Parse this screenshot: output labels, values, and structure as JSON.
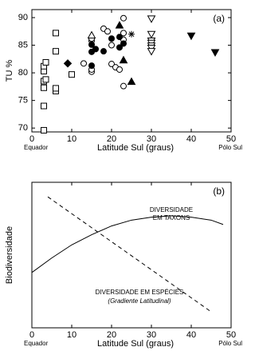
{
  "chart_data": [
    {
      "type": "scatter",
      "panel_label": "(a)",
      "xlabel": "Latitude Sul (graus)",
      "ylabel": "TU %",
      "annotations": [
        "Equador",
        "Pólo Sul"
      ],
      "xlim": [
        0,
        50
      ],
      "xticks": [
        0,
        10,
        20,
        30,
        40,
        50
      ],
      "ylim": [
        69.3,
        91.45
      ],
      "yticks": [
        70,
        75,
        80,
        85,
        90
      ],
      "series": [
        {
          "marker": "square",
          "filled": false,
          "color": "#000000",
          "x": [
            3,
            3,
            3,
            3,
            3.5,
            3,
            3,
            3.5,
            6,
            6,
            6,
            6,
            10
          ],
          "y": [
            69.6,
            74,
            77.3,
            78.5,
            78.8,
            80.3,
            81.2,
            81.9,
            76.7,
            77.2,
            83.9,
            87.2,
            79.7
          ]
        },
        {
          "marker": "diamond",
          "filled": true,
          "color": "#000000",
          "x": [
            9
          ],
          "y": [
            81.7
          ]
        },
        {
          "marker": "circle",
          "filled": false,
          "color": "#000000",
          "x": [
            13,
            15,
            15,
            15,
            15,
            18,
            19,
            20,
            20,
            21,
            22,
            23,
            23,
            23,
            23
          ],
          "y": [
            81.7,
            80.2,
            80.6,
            85.8,
            86.2,
            88,
            87.5,
            85,
            81.6,
            81,
            80.6,
            77.6,
            86,
            87.2,
            89.9
          ]
        },
        {
          "marker": "circle",
          "filled": true,
          "color": "#000000",
          "x": [
            15,
            15,
            15,
            16,
            18,
            20,
            22,
            22,
            23
          ],
          "y": [
            83.8,
            85.1,
            81.3,
            84.3,
            83.9,
            86.2,
            84.6,
            86.5,
            85.3
          ]
        },
        {
          "marker": "triangle-up",
          "filled": false,
          "color": "#000000",
          "x": [
            15
          ],
          "y": [
            86.8
          ]
        },
        {
          "marker": "triangle-up",
          "filled": true,
          "color": "#000000",
          "x": [
            22,
            23,
            25
          ],
          "y": [
            88.6,
            82.3,
            78.4
          ]
        },
        {
          "marker": "asterisk",
          "filled": false,
          "color": "#000000",
          "x": [
            25
          ],
          "y": [
            87
          ]
        },
        {
          "marker": "triangle-down",
          "filled": false,
          "color": "#000000",
          "x": [
            30,
            30,
            30,
            30,
            30,
            30,
            30
          ],
          "y": [
            89.8,
            87,
            85.8,
            85.4,
            84.9,
            84.5,
            83.9
          ]
        },
        {
          "marker": "triangle-down",
          "filled": true,
          "color": "#000000",
          "x": [
            40,
            46
          ],
          "y": [
            86.7,
            83.7
          ]
        }
      ]
    },
    {
      "type": "line",
      "panel_label": "(b)",
      "xlabel": "Latitude Sul (graus)",
      "ylabel": "Biodiversidade",
      "annotations": [
        "Equador",
        "Pólo Sul"
      ],
      "xlim": [
        0,
        50
      ],
      "xticks": [
        0,
        10,
        20,
        30,
        40,
        50
      ],
      "ylim": [
        0,
        100
      ],
      "series": [
        {
          "label": [
            "DIVERSIDADE",
            "EM TAXONS"
          ],
          "dash": false,
          "color": "#000000",
          "x": [
            0,
            5,
            10,
            15,
            20,
            25,
            30,
            35,
            40,
            45,
            48
          ],
          "values": [
            38,
            48,
            57,
            64,
            70,
            74,
            76,
            77,
            76,
            74,
            71
          ]
        },
        {
          "label": [
            "DIVERSIDADE EM ESPÉCIES",
            "(Gradiente Latitudinal)"
          ],
          "dash": true,
          "color": "#000000",
          "x": [
            4,
            45
          ],
          "values": [
            90,
            11
          ]
        }
      ]
    }
  ]
}
